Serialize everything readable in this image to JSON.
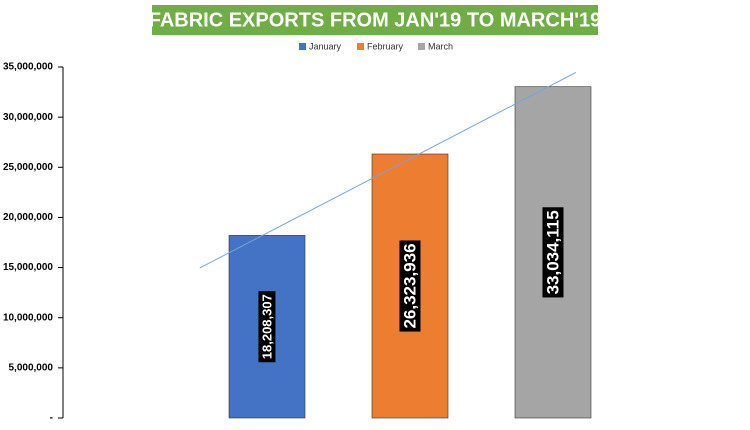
{
  "chart_data": {
    "type": "bar",
    "title": "FABRIC EXPORTS FROM JAN'19 TO MARCH'19",
    "series": [
      {
        "name": "January",
        "color": "#4472c4",
        "values": [
          18208307
        ],
        "value_labels": [
          "18,208,307"
        ]
      },
      {
        "name": "February",
        "color": "#ed7d31",
        "values": [
          26323936
        ],
        "value_labels": [
          "26,323,936"
        ]
      },
      {
        "name": "March",
        "color": "#a5a5a5",
        "values": [
          33034115
        ],
        "value_labels": [
          "33,034,115"
        ]
      }
    ],
    "ylim": [
      0,
      35000000
    ],
    "yticks": [
      {
        "value": 0,
        "label": "-"
      },
      {
        "value": 5000000,
        "label": "5,000,000"
      },
      {
        "value": 10000000,
        "label": "10,000,000"
      },
      {
        "value": 15000000,
        "label": "15,000,000"
      },
      {
        "value": 20000000,
        "label": "20,000,000"
      },
      {
        "value": 25000000,
        "label": "25,000,000"
      },
      {
        "value": 30000000,
        "label": "30,000,000"
      },
      {
        "value": 35000000,
        "label": "35,000,000"
      }
    ],
    "trendline": true,
    "legend": "top"
  }
}
